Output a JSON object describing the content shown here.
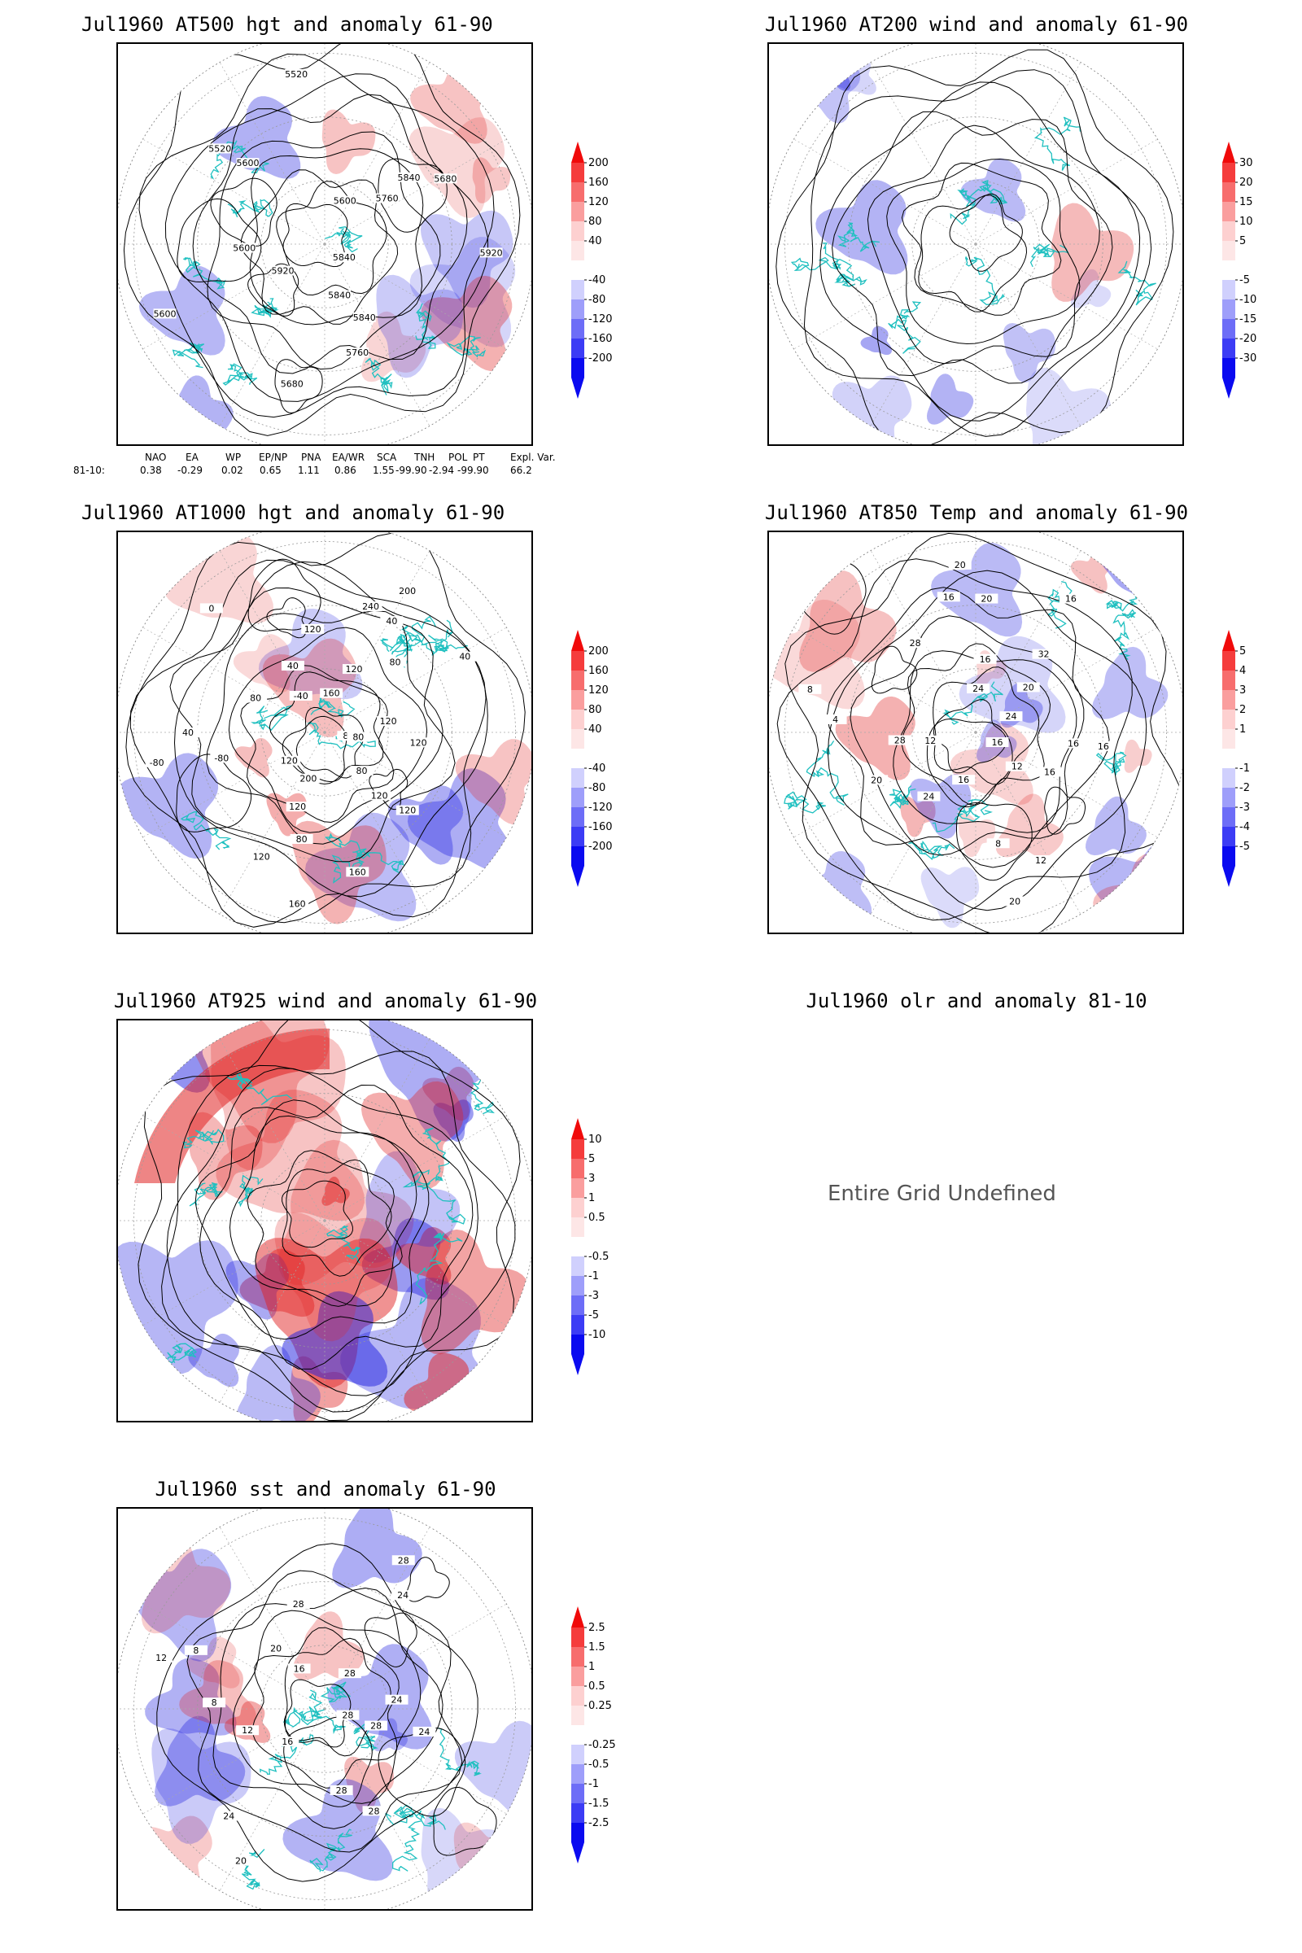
{
  "panels": [
    {
      "id": "p1",
      "title": "Jul1960 AT500 hgt and anomaly 61-90",
      "contour_labels": [
        "5840",
        "5840",
        "5840",
        "5760",
        "5680",
        "5600",
        "5920",
        "5600",
        "5600",
        "5520",
        "5520",
        "5600",
        "5760",
        "5840",
        "5680",
        "5920"
      ],
      "colorbar": [
        "200",
        "160",
        "120",
        "80",
        "40",
        "-40",
        "-80",
        "-120",
        "-160",
        "-200"
      ]
    },
    {
      "id": "p2",
      "title": "Jul1960 AT200 wind and anomaly 61-90",
      "colorbar": [
        "30",
        "20",
        "15",
        "10",
        "5",
        "-5",
        "-10",
        "-15",
        "-20",
        "-30"
      ]
    },
    {
      "id": "p3",
      "title": "Jul1960 AT1000 hgt and anomaly 61-90",
      "contour_labels": [
        "80",
        "80",
        "120",
        "120",
        "160",
        "160",
        "200",
        "120",
        "80",
        "120",
        "-80",
        "120",
        "80",
        "-80",
        "40",
        "0",
        "-40",
        "40",
        "120",
        "240",
        "200",
        "160",
        "120",
        "80",
        "40",
        "40",
        "80",
        "120",
        "120"
      ],
      "colorbar": [
        "200",
        "160",
        "120",
        "80",
        "40",
        "-40",
        "-80",
        "-120",
        "-160",
        "-200"
      ]
    },
    {
      "id": "p4",
      "title": "Jul1960 AT850 Temp and anomaly 61-90",
      "contour_labels": [
        "16",
        "12",
        "16",
        "8",
        "12",
        "20",
        "16",
        "24",
        "20",
        "4",
        "8",
        "12",
        "28",
        "28",
        "16",
        "20",
        "24",
        "16",
        "32",
        "20",
        "16",
        "24",
        "20",
        "16",
        "16"
      ],
      "colorbar": [
        "5",
        "4",
        "3",
        "2",
        "1",
        "-1",
        "-2",
        "-3",
        "-4",
        "-5"
      ]
    },
    {
      "id": "p5",
      "title": "Jul1960 AT925 wind and anomaly 61-90",
      "colorbar": [
        "10",
        "5",
        "3",
        "1",
        "0.5",
        "-0.5",
        "-1",
        "-3",
        "-5",
        "-10"
      ]
    },
    {
      "id": "p6",
      "title": "Jul1960 olr and anomaly 81-10",
      "message": "Entire Grid Undefined"
    },
    {
      "id": "p7",
      "title": "Jul1960 sst and anomaly 61-90",
      "contour_labels": [
        "28",
        "28",
        "28",
        "28",
        "24",
        "20",
        "16",
        "12",
        "8",
        "8",
        "12",
        "16",
        "20",
        "28",
        "24",
        "28",
        "28",
        "24",
        "24"
      ],
      "colorbar": [
        "2.5",
        "1.5",
        "1",
        "0.5",
        "0.25",
        "-0.25",
        "-0.5",
        "-1",
        "-1.5",
        "-2.5"
      ]
    }
  ],
  "teleconnection": {
    "headers": [
      "NAO",
      "EA",
      "WP",
      "EP/NP",
      "PNA",
      "EA/WR",
      "SCA",
      "TNH",
      "POL",
      "PT",
      "Expl. Var."
    ],
    "row_label": "81-10:",
    "values": [
      "0.38",
      "-0.29",
      "0.02",
      "0.65",
      "1.11",
      "0.86",
      "1.55",
      "-99.90",
      "-2.94",
      "-99.90",
      "66.2"
    ]
  },
  "colors": {
    "coast": "#20c0c0",
    "pos": "#e02020",
    "neg": "#2020e0",
    "contour": "#000000"
  }
}
